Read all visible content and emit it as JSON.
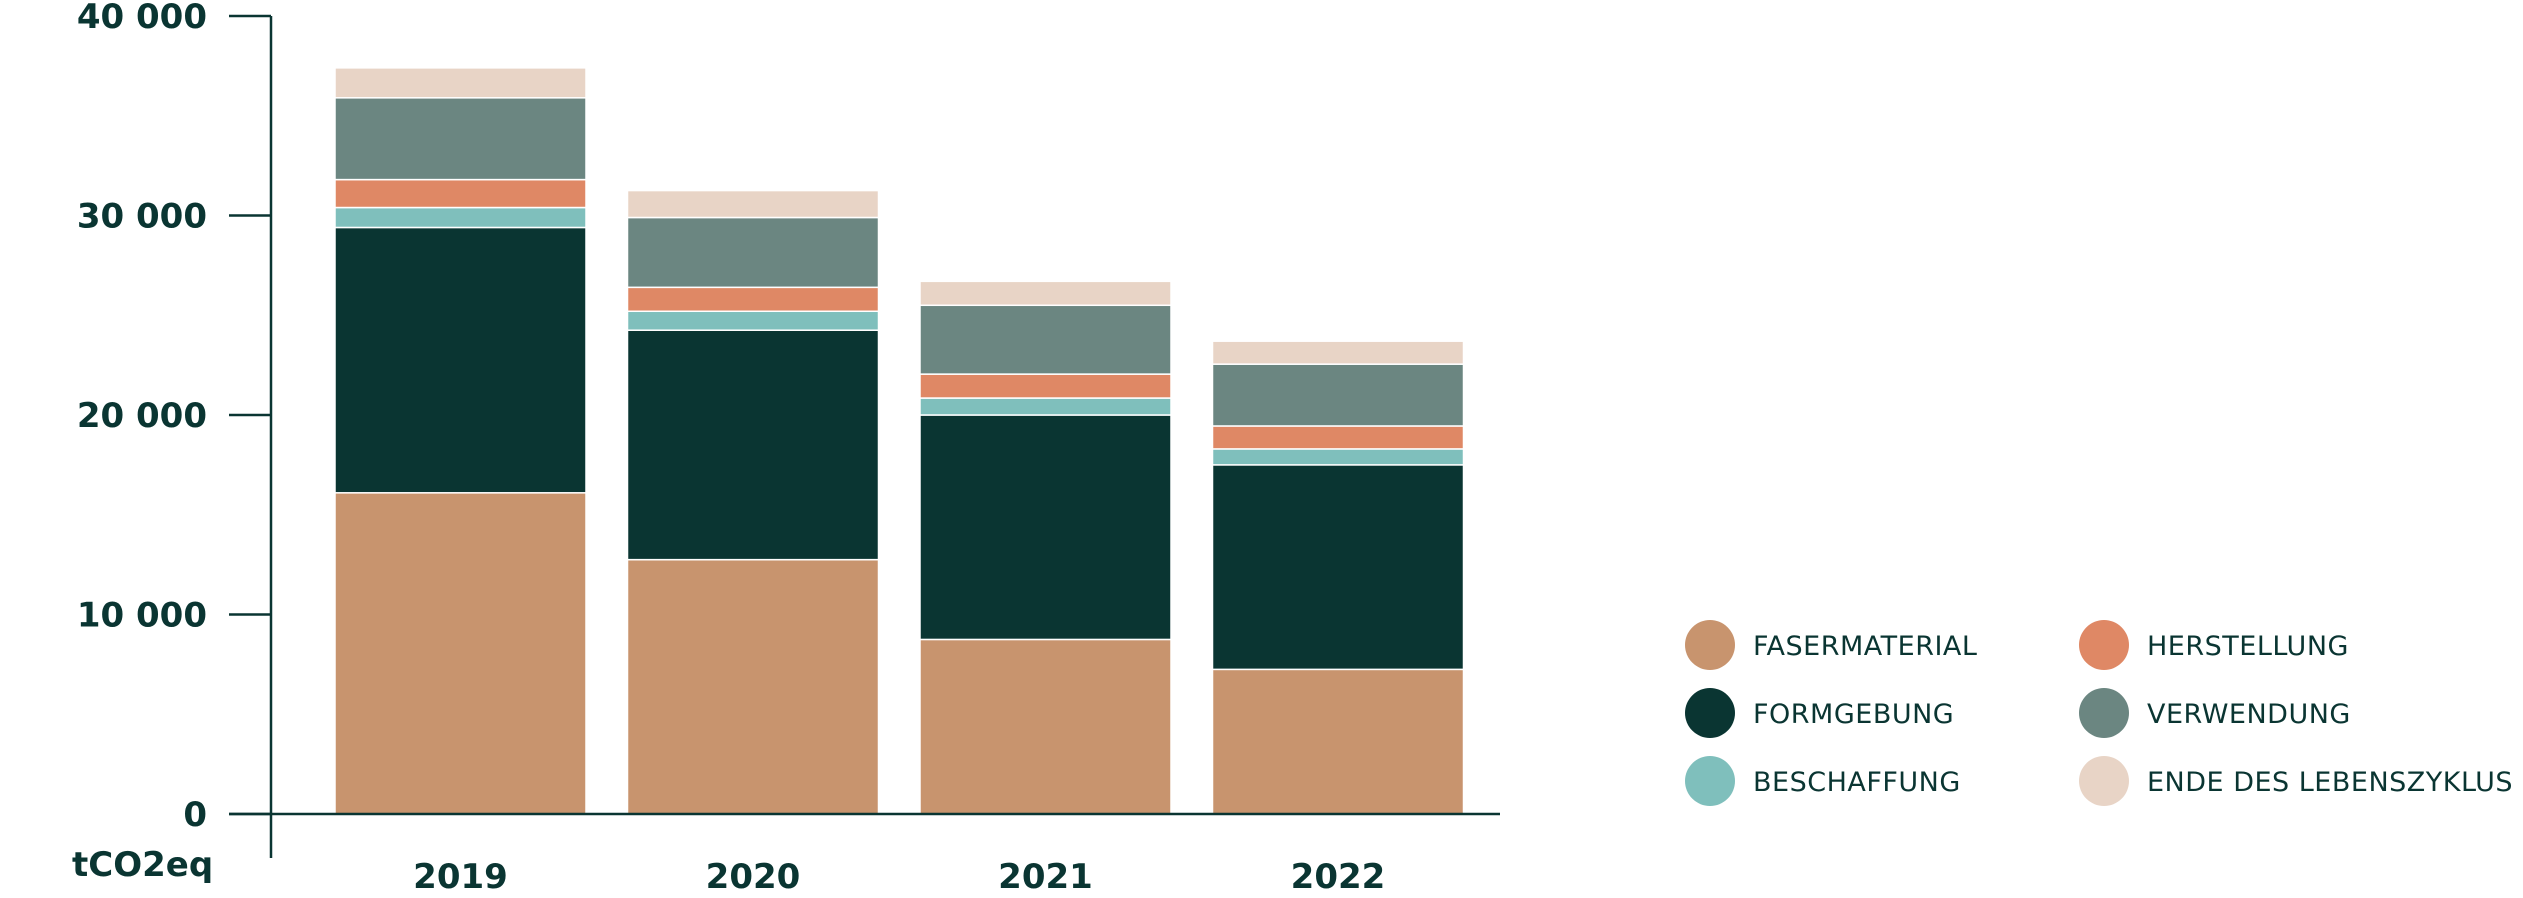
{
  "chart_data": {
    "type": "bar",
    "stacked": true,
    "categories": [
      "2019",
      "2020",
      "2021",
      "2022"
    ],
    "series": [
      {
        "name": "FASERMATERIAL",
        "color": "#c8946e",
        "values": [
          16100,
          12750,
          8750,
          7250
        ]
      },
      {
        "name": "FORMGEBUNG",
        "color": "#0a3532",
        "values": [
          13300,
          11500,
          11250,
          10250
        ]
      },
      {
        "name": "BESCHAFFUNG",
        "color": "#7fbfbc",
        "values": [
          1000,
          950,
          850,
          800
        ]
      },
      {
        "name": "HERSTELLUNG",
        "color": "#df8865",
        "values": [
          1400,
          1200,
          1200,
          1150
        ]
      },
      {
        "name": "VERWENDUNG",
        "color": "#6b8681",
        "values": [
          4100,
          3500,
          3450,
          3100
        ]
      },
      {
        "name": "ENDE DES LEBENSZYKLUS",
        "color": "#e8d4c6",
        "values": [
          1500,
          1350,
          1200,
          1150
        ]
      }
    ],
    "ylim": [
      0,
      40000
    ],
    "y_ticks": [
      {
        "value": 0,
        "label": "0"
      },
      {
        "value": 10000,
        "label": "10 000"
      },
      {
        "value": 20000,
        "label": "20 000"
      },
      {
        "value": 30000,
        "label": "30 000"
      },
      {
        "value": 40000,
        "label": "40 000"
      }
    ],
    "ylabel": "tCO2eq",
    "xlabel": "",
    "title": "",
    "grid": false,
    "legend_position": "right"
  }
}
